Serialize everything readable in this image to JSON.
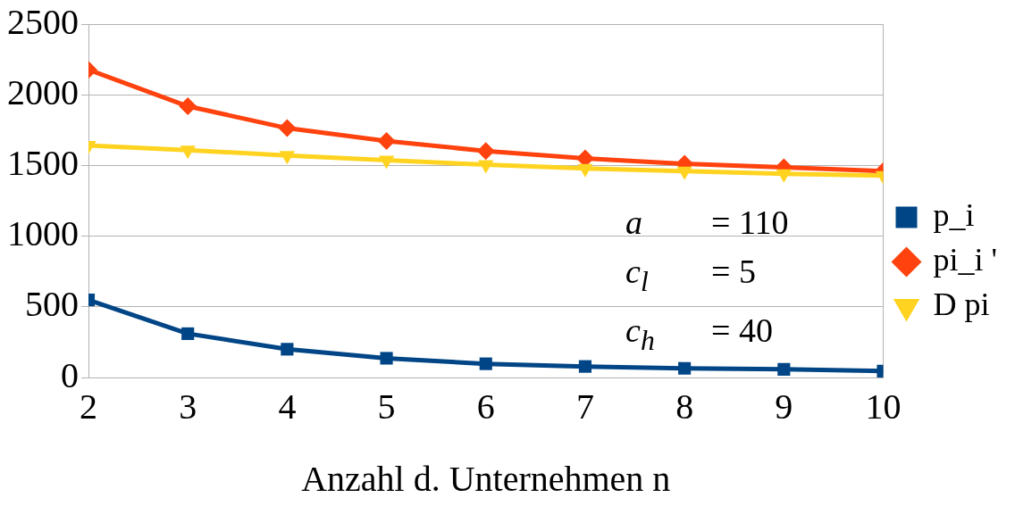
{
  "chart_data": {
    "type": "line",
    "xlabel": "Anzahl d. Unternehmen n",
    "x": [
      2,
      3,
      4,
      5,
      6,
      7,
      8,
      9,
      10
    ],
    "xlim": [
      2,
      10
    ],
    "xticks": [
      2,
      3,
      4,
      5,
      6,
      7,
      8,
      9,
      10
    ],
    "ylim": [
      0,
      2500
    ],
    "yticks": [
      0,
      500,
      1000,
      1500,
      2000,
      2500
    ],
    "grid": "y",
    "legend": "right",
    "line_style": "solid",
    "series": [
      {
        "name": "p_i",
        "color": "#004586",
        "marker": "square",
        "values": [
          549,
          310,
          200,
          136,
          97,
          78,
          65,
          58,
          45
        ]
      },
      {
        "name": "pi_i '",
        "color": "#ff420e",
        "marker": "diamond",
        "values": [
          2177,
          1919,
          1764,
          1673,
          1602,
          1550,
          1512,
          1486,
          1460
        ]
      },
      {
        "name": "D pi",
        "color": "#ffd320",
        "marker": "triangle",
        "values": [
          1641,
          1609,
          1570,
          1538,
          1505,
          1479,
          1460,
          1441,
          1428
        ]
      }
    ],
    "annotations": [
      "a = 110",
      "c$_{l}$ = 5",
      "c$_{h}$ = 40"
    ]
  }
}
